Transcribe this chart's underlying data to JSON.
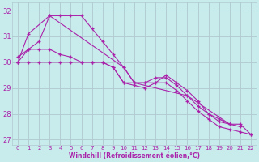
{
  "xlabel": "Windchill (Refroidissement éolien,°C)",
  "xlim": [
    -0.5,
    22.5
  ],
  "ylim": [
    26.8,
    32.3
  ],
  "yticks": [
    27,
    28,
    29,
    30,
    31,
    32
  ],
  "xticks": [
    0,
    1,
    2,
    3,
    4,
    5,
    6,
    7,
    8,
    9,
    10,
    11,
    12,
    13,
    14,
    15,
    16,
    17,
    18,
    19,
    20,
    21,
    22
  ],
  "bg_color": "#c8ecec",
  "grid_color": "#b0c8d0",
  "line_color": "#aa22aa",
  "series": [
    {
      "x": [
        0,
        1,
        2,
        3,
        4,
        5,
        6,
        7,
        8,
        9,
        10,
        11,
        12,
        13,
        14,
        15,
        16,
        17,
        18,
        19,
        20,
        21,
        22
      ],
      "y": [
        30.0,
        30.5,
        30.8,
        31.8,
        31.8,
        31.8,
        31.8,
        31.3,
        30.8,
        30.3,
        29.8,
        29.2,
        29.2,
        29.2,
        29.5,
        29.2,
        28.9,
        28.5,
        28.0,
        27.8,
        27.6,
        27.6,
        27.2
      ]
    },
    {
      "x": [
        0,
        1,
        3,
        10,
        11,
        16,
        20
      ],
      "y": [
        30.0,
        31.1,
        31.8,
        29.8,
        29.2,
        28.7,
        27.6
      ]
    },
    {
      "x": [
        0,
        1,
        2,
        3,
        4,
        5,
        6,
        7,
        8,
        9,
        10,
        11,
        12,
        13,
        14,
        15,
        16,
        17,
        18,
        19,
        20,
        21
      ],
      "y": [
        30.2,
        30.5,
        30.5,
        30.5,
        30.3,
        30.2,
        30.0,
        30.0,
        30.0,
        29.8,
        29.2,
        29.2,
        29.2,
        29.4,
        29.4,
        29.1,
        28.7,
        28.3,
        28.0,
        27.7,
        27.6,
        27.5
      ]
    },
    {
      "x": [
        0,
        1,
        2,
        3,
        4,
        5,
        6,
        7,
        8,
        9,
        10,
        11,
        12,
        13,
        14,
        15,
        16,
        17,
        18,
        19,
        20,
        21,
        22
      ],
      "y": [
        30.0,
        30.0,
        30.0,
        30.0,
        30.0,
        30.0,
        30.0,
        30.0,
        30.0,
        29.8,
        29.2,
        29.1,
        29.0,
        29.2,
        29.2,
        28.9,
        28.5,
        28.1,
        27.8,
        27.5,
        27.4,
        27.3,
        27.2
      ]
    }
  ]
}
